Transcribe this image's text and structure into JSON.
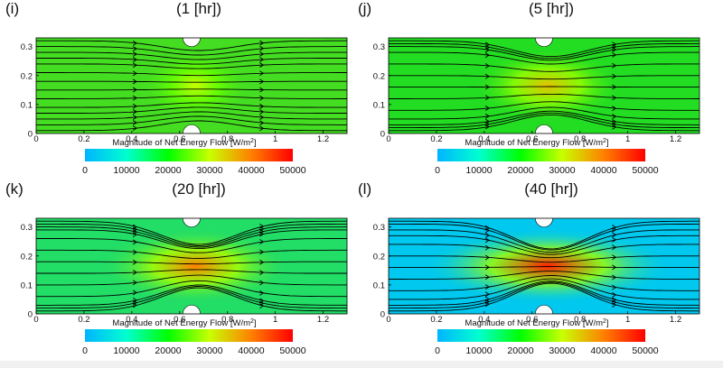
{
  "colorbar": {
    "label_prefix": "Magnitude of Net Energy Flow [W/m",
    "label_sup": "2",
    "label_suffix": "]",
    "ticks": [
      "0",
      "10000",
      "20000",
      "30000",
      "40000",
      "50000"
    ],
    "range": [
      0,
      50000
    ],
    "colors": [
      "#00b4ff",
      "#00ffd0",
      "#00ff00",
      "#c8ff00",
      "#ff8000",
      "#ff0000"
    ]
  },
  "axes": {
    "x_ticks": [
      "0",
      "0.2",
      "0.4",
      "0.6",
      "0.8",
      "1",
      "1.2"
    ],
    "y_ticks": [
      "0",
      "0.1",
      "0.2",
      "0.3"
    ],
    "xlim": [
      0,
      1.3
    ],
    "ylim": [
      0,
      0.33
    ]
  },
  "chart_data": [
    {
      "type": "heatmap",
      "panel": "(i)",
      "title": "(1 [hr])",
      "background_level": 20000,
      "center_level": 30000,
      "obstacle_x": 0.65,
      "obstacle_radius": 0.03,
      "neck_width": 0.26,
      "background_color": "#44dd22",
      "streamline_y": [
        0.01,
        0.03,
        0.05,
        0.07,
        0.09,
        0.12,
        0.15,
        0.18,
        0.21,
        0.24,
        0.26,
        0.28,
        0.3,
        0.32
      ]
    },
    {
      "type": "heatmap",
      "panel": "(j)",
      "title": "(5 [hr])",
      "background_level": 20000,
      "center_level": 35000,
      "obstacle_x": 0.65,
      "obstacle_radius": 0.03,
      "neck_width": 0.18,
      "background_color": "#22dd22",
      "streamline_y": [
        0.01,
        0.02,
        0.03,
        0.05,
        0.08,
        0.12,
        0.16,
        0.2,
        0.24,
        0.28,
        0.3,
        0.31,
        0.32
      ]
    },
    {
      "type": "heatmap",
      "panel": "(k)",
      "title": "(20 [hr])",
      "background_level": 17000,
      "center_level": 40000,
      "obstacle_x": 0.65,
      "obstacle_radius": 0.03,
      "neck_width": 0.08,
      "background_color": "#22dd66",
      "streamline_y": [
        0.01,
        0.02,
        0.03,
        0.06,
        0.1,
        0.14,
        0.18,
        0.22,
        0.26,
        0.29,
        0.3,
        0.31,
        0.32
      ]
    },
    {
      "type": "heatmap",
      "panel": "(l)",
      "title": "(40 [hr])",
      "background_level": 8000,
      "center_level": 48000,
      "obstacle_x": 0.65,
      "obstacle_radius": 0.03,
      "neck_width": 0.02,
      "background_color": "#00c8ee",
      "streamline_y": [
        0.01,
        0.02,
        0.03,
        0.05,
        0.08,
        0.12,
        0.16,
        0.2,
        0.24,
        0.27,
        0.29,
        0.31,
        0.32
      ]
    }
  ]
}
